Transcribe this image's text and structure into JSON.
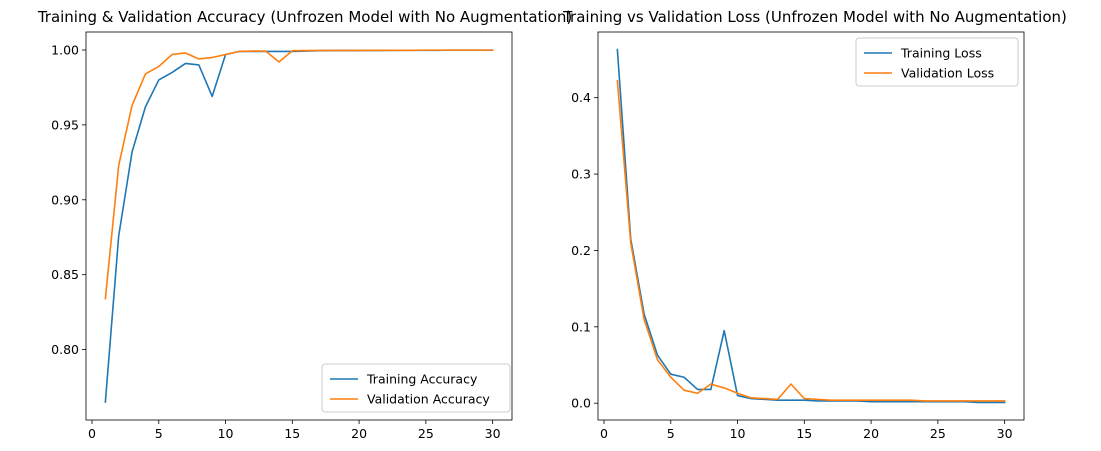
{
  "chart_data": [
    {
      "type": "line",
      "title": "Training & Validation Accuracy (Unfrozen Model with No Augmentation)",
      "xlabel": "",
      "ylabel": "",
      "xlim": [
        -0.45,
        31.45
      ],
      "ylim": [
        0.753,
        1.012
      ],
      "xticks": [
        0,
        5,
        10,
        15,
        20,
        25,
        30
      ],
      "yticks": [
        0.8,
        0.85,
        0.9,
        0.95,
        1.0
      ],
      "ytick_labels": [
        "0.80",
        "0.85",
        "0.90",
        "0.95",
        "1.00"
      ],
      "grid": false,
      "legend": "lower-right",
      "x": [
        1,
        2,
        3,
        4,
        5,
        6,
        7,
        8,
        9,
        10,
        11,
        12,
        13,
        14,
        15,
        16,
        17,
        18,
        19,
        20,
        21,
        22,
        23,
        24,
        25,
        26,
        27,
        28,
        29,
        30
      ],
      "series": [
        {
          "name": "Training Accuracy",
          "color": "#1f77b4",
          "values": [
            0.765,
            0.876,
            0.932,
            0.962,
            0.98,
            0.985,
            0.991,
            0.99,
            0.969,
            0.997,
            0.999,
            0.999,
            0.999,
            0.999,
            0.999,
            0.9993,
            0.9995,
            0.9996,
            0.9997,
            0.9996,
            0.9997,
            0.9997,
            0.9998,
            0.9998,
            0.9998,
            0.9998,
            0.9999,
            0.9999,
            0.9999,
            0.9999
          ]
        },
        {
          "name": "Validation Accuracy",
          "color": "#ff7f0e",
          "values": [
            0.834,
            0.923,
            0.963,
            0.984,
            0.989,
            0.997,
            0.998,
            0.994,
            0.995,
            0.997,
            0.999,
            0.9993,
            0.9993,
            0.992,
            0.9995,
            0.9996,
            0.9997,
            0.9997,
            0.9997,
            0.9997,
            0.9998,
            0.9998,
            0.9998,
            0.9998,
            0.9999,
            0.9999,
            0.9999,
            0.9999,
            0.9999,
            0.9999
          ]
        }
      ]
    },
    {
      "type": "line",
      "title": "Training vs Validation Loss (Unfrozen Model with No Augmentation)",
      "xlabel": "",
      "ylabel": "",
      "xlim": [
        -0.45,
        31.45
      ],
      "ylim": [
        -0.022,
        0.486
      ],
      "xticks": [
        0,
        5,
        10,
        15,
        20,
        25,
        30
      ],
      "yticks": [
        0.0,
        0.1,
        0.2,
        0.3,
        0.4
      ],
      "ytick_labels": [
        "0.0",
        "0.1",
        "0.2",
        "0.3",
        "0.4"
      ],
      "grid": false,
      "legend": "upper-right",
      "x": [
        1,
        2,
        3,
        4,
        5,
        6,
        7,
        8,
        9,
        10,
        11,
        12,
        13,
        14,
        15,
        16,
        17,
        18,
        19,
        20,
        21,
        22,
        23,
        24,
        25,
        26,
        27,
        28,
        29,
        30
      ],
      "series": [
        {
          "name": "Training Loss",
          "color": "#1f77b4",
          "values": [
            0.463,
            0.215,
            0.117,
            0.063,
            0.038,
            0.034,
            0.018,
            0.018,
            0.095,
            0.01,
            0.006,
            0.005,
            0.004,
            0.004,
            0.004,
            0.003,
            0.003,
            0.003,
            0.003,
            0.002,
            0.002,
            0.002,
            0.002,
            0.002,
            0.002,
            0.002,
            0.002,
            0.001,
            0.001,
            0.001
          ]
        },
        {
          "name": "Validation Loss",
          "color": "#ff7f0e",
          "values": [
            0.422,
            0.21,
            0.11,
            0.057,
            0.034,
            0.017,
            0.013,
            0.025,
            0.02,
            0.013,
            0.007,
            0.006,
            0.005,
            0.025,
            0.006,
            0.005,
            0.004,
            0.004,
            0.004,
            0.004,
            0.004,
            0.004,
            0.004,
            0.003,
            0.003,
            0.003,
            0.003,
            0.003,
            0.003,
            0.003
          ]
        }
      ]
    }
  ]
}
